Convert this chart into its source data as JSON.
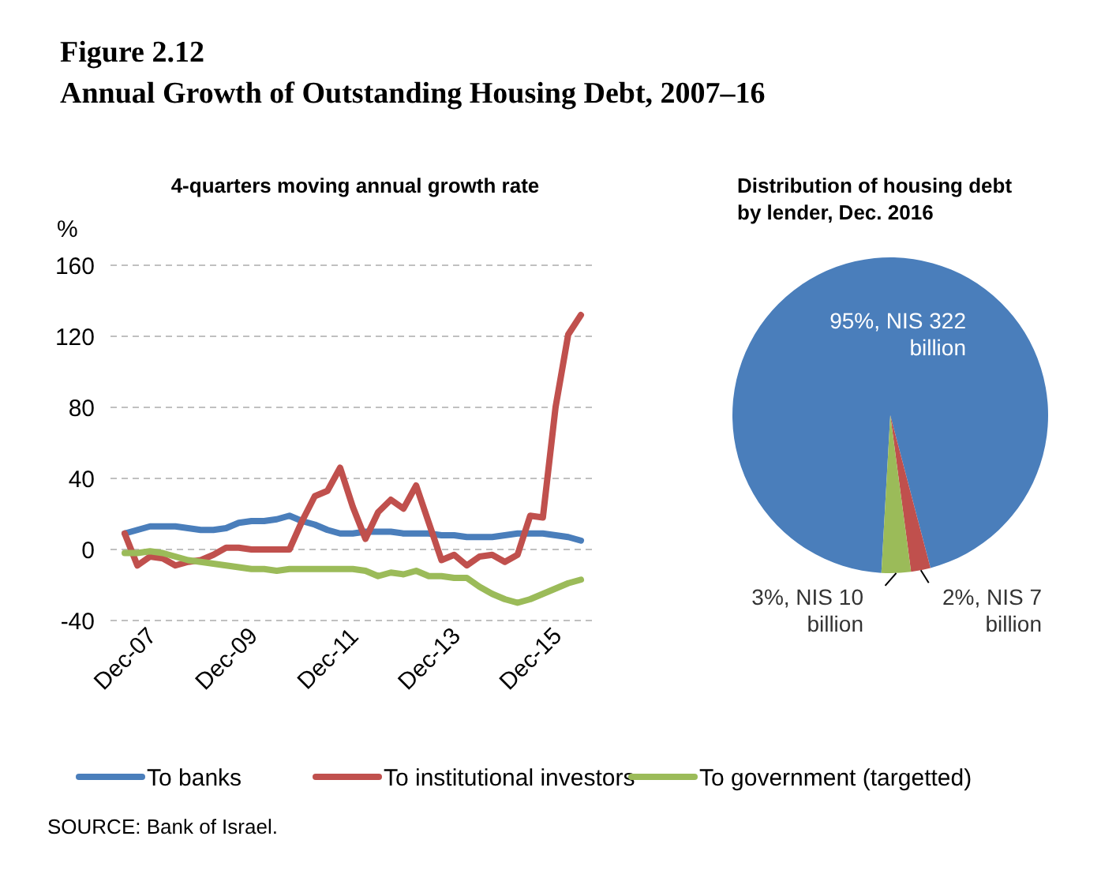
{
  "chart_data": [
    {
      "type": "line",
      "title": "4-quarters moving annual growth rate",
      "ylabel": "%",
      "annotations": [
        "Figure 2.12",
        "Annual Growth of Outstanding Housing Debt, 2007–16",
        "SOURCE: Bank of Israel."
      ],
      "categories": [
        "Dec-07",
        null,
        null,
        null,
        null,
        null,
        null,
        null,
        "Dec-09",
        null,
        null,
        null,
        null,
        null,
        null,
        null,
        "Dec-11",
        null,
        null,
        null,
        null,
        null,
        null,
        null,
        "Dec-13",
        null,
        null,
        null,
        null,
        null,
        null,
        null,
        "Dec-15",
        null,
        null,
        null,
        null
      ],
      "series": [
        {
          "name": "To banks",
          "color": "#4a7ebb",
          "values": [
            9,
            11,
            13,
            13,
            13,
            12,
            11,
            11,
            12,
            15,
            16,
            16,
            17,
            19,
            16,
            14,
            11,
            9,
            9,
            10,
            10,
            10,
            9,
            9,
            9,
            8,
            8,
            7,
            7,
            7,
            8,
            9,
            9,
            9,
            8,
            7,
            5
          ]
        },
        {
          "name": "To institutional investors",
          "color": "#c0504d",
          "values": [
            9,
            -9,
            -4,
            -5,
            -9,
            -7,
            -6,
            -3,
            1,
            1,
            0,
            0,
            0,
            0,
            16,
            30,
            33,
            46,
            24,
            6,
            21,
            28,
            23,
            36,
            15,
            -6,
            -3,
            -9,
            -4,
            -3,
            -7,
            -3,
            19,
            18,
            80,
            121,
            132
          ]
        },
        {
          "name": "To government (targetted)",
          "color": "#9bbb59",
          "values": [
            -2,
            -2,
            -1,
            -2,
            -4,
            -6,
            -7,
            -8,
            -9,
            -10,
            -11,
            -11,
            -12,
            -11,
            -11,
            -11,
            -11,
            -11,
            -11,
            -12,
            -15,
            -13,
            -14,
            -12,
            -15,
            -15,
            -16,
            -16,
            -21,
            -25,
            -28,
            -30,
            -28,
            -25,
            -22,
            -19,
            -17
          ]
        }
      ],
      "ylim": [
        -40,
        160
      ],
      "yticks": [
        -40,
        0,
        40,
        80,
        120,
        160
      ],
      "grid": "y",
      "legend": "bottom",
      "line_style": "solid",
      "marker": "none"
    },
    {
      "type": "pie",
      "title": "Distribution of housing debt by lender, Dec. 2016",
      "categories": [
        null,
        null,
        null
      ],
      "values": [
        95,
        2,
        3
      ],
      "colors": [
        "#4a7ebb",
        "#c0504d",
        "#9bbb59"
      ],
      "value_labels": [
        "95%, NIS 322 billion",
        "2%, NIS 7 billion",
        "3%, NIS 10 billion"
      ]
    }
  ]
}
